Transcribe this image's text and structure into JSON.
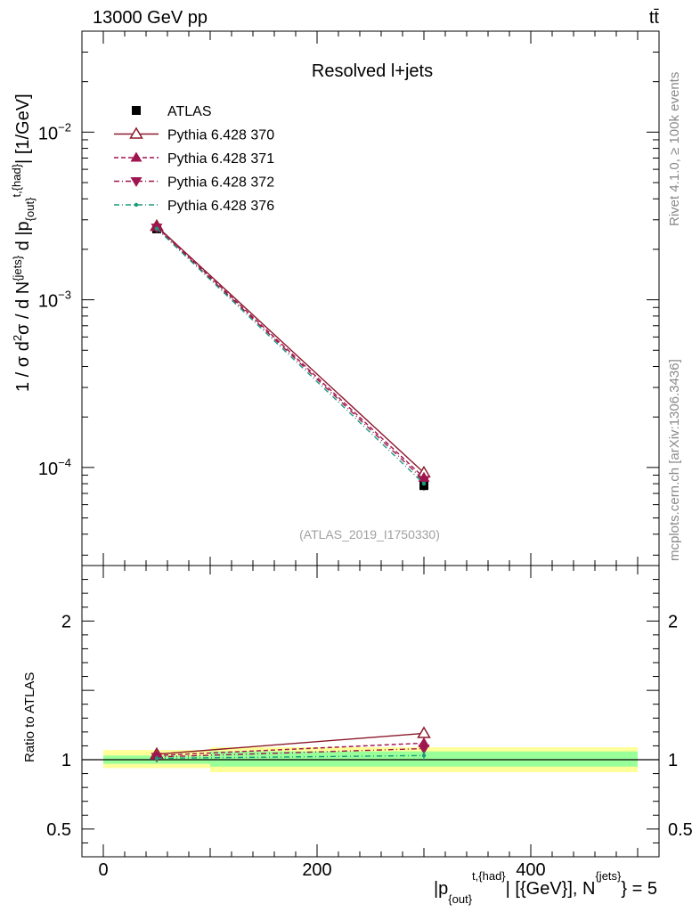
{
  "header": {
    "energy_label": "13000 GeV pp",
    "process_label": "tt̄"
  },
  "side": {
    "rivet": "Rivet 4.1.0, ≥ 100k events",
    "source": "mcplots.cern.ch [arXiv:1306.3436]"
  },
  "chart_data": [
    {
      "type": "line",
      "title": "Resolved l+jets",
      "watermark": "(ATLAS_2019_I1750330)",
      "y_scale": "log",
      "ylabel": "1 / σ d²σ / d N^{jets} d |p_{out}^{t,{had}}| [1/GeV]",
      "xlim": [
        -20,
        520
      ],
      "ylim": [
        2.6e-05,
        0.04
      ],
      "y_ticks": [
        {
          "value": 0.01,
          "label": "10",
          "exp": "−2"
        },
        {
          "value": 0.001,
          "label": "10",
          "exp": "−3"
        },
        {
          "value": 0.0001,
          "label": "10",
          "exp": "−4"
        }
      ],
      "x": [
        50,
        300
      ],
      "series": [
        {
          "name": "ATLAS",
          "color": "#000000",
          "style": "data",
          "values": [
            0.00265,
            7.8e-05
          ],
          "errors": [
            0.0001,
            5e-06
          ]
        },
        {
          "name": "Pythia 6.428 370",
          "color": "#8b1a2b",
          "style": "solid",
          "marker": "open-triangle-up",
          "values": [
            0.00275,
            9.3e-05
          ]
        },
        {
          "name": "Pythia 6.428 371",
          "color": "#a0144f",
          "style": "dashed",
          "marker": "triangle-up",
          "values": [
            0.00272,
            8.7e-05
          ]
        },
        {
          "name": "Pythia 6.428 372",
          "color": "#a0144f",
          "style": "dashdot",
          "marker": "triangle-down",
          "values": [
            0.00269,
            8.4e-05
          ]
        },
        {
          "name": "Pythia 6.428 376",
          "color": "#1a9a7a",
          "style": "dashdot",
          "marker": "dot",
          "values": [
            0.00266,
            8e-05
          ]
        }
      ]
    },
    {
      "type": "line",
      "ylabel": "Ratio to ATLAS",
      "xlabel": "|p_{out}^{t,{had}}| [{GeV}], N^{jets} = 5",
      "xlim": [
        -20,
        520
      ],
      "ylim": [
        0.3,
        2.4
      ],
      "y_ticks": [
        0.5,
        1,
        2
      ],
      "x_ticks": [
        0,
        200,
        400
      ],
      "bins": [
        {
          "x_low": 0,
          "x_high": 100,
          "band_inner": [
            0.97,
            1.03
          ],
          "band_outer": [
            0.94,
            1.07
          ]
        },
        {
          "x_low": 100,
          "x_high": 500,
          "band_inner": [
            0.95,
            1.06
          ],
          "band_outer": [
            0.91,
            1.09
          ]
        }
      ],
      "x": [
        50,
        300
      ],
      "series": [
        {
          "name": "Pythia 6.428 370",
          "color": "#8b1a2b",
          "values": [
            1.04,
            1.19
          ],
          "errors": [
            0.02,
            0.03
          ]
        },
        {
          "name": "Pythia 6.428 371",
          "color": "#a0144f",
          "values": [
            1.03,
            1.12
          ],
          "errors": [
            0.02,
            0.03
          ]
        },
        {
          "name": "Pythia 6.428 372",
          "color": "#a0144f",
          "values": [
            1.02,
            1.08
          ],
          "errors": [
            0.02,
            0.03
          ]
        },
        {
          "name": "Pythia 6.428 376",
          "color": "#1a9a7a",
          "values": [
            1.01,
            1.03
          ],
          "errors": [
            0.02,
            0.03
          ]
        }
      ]
    }
  ]
}
